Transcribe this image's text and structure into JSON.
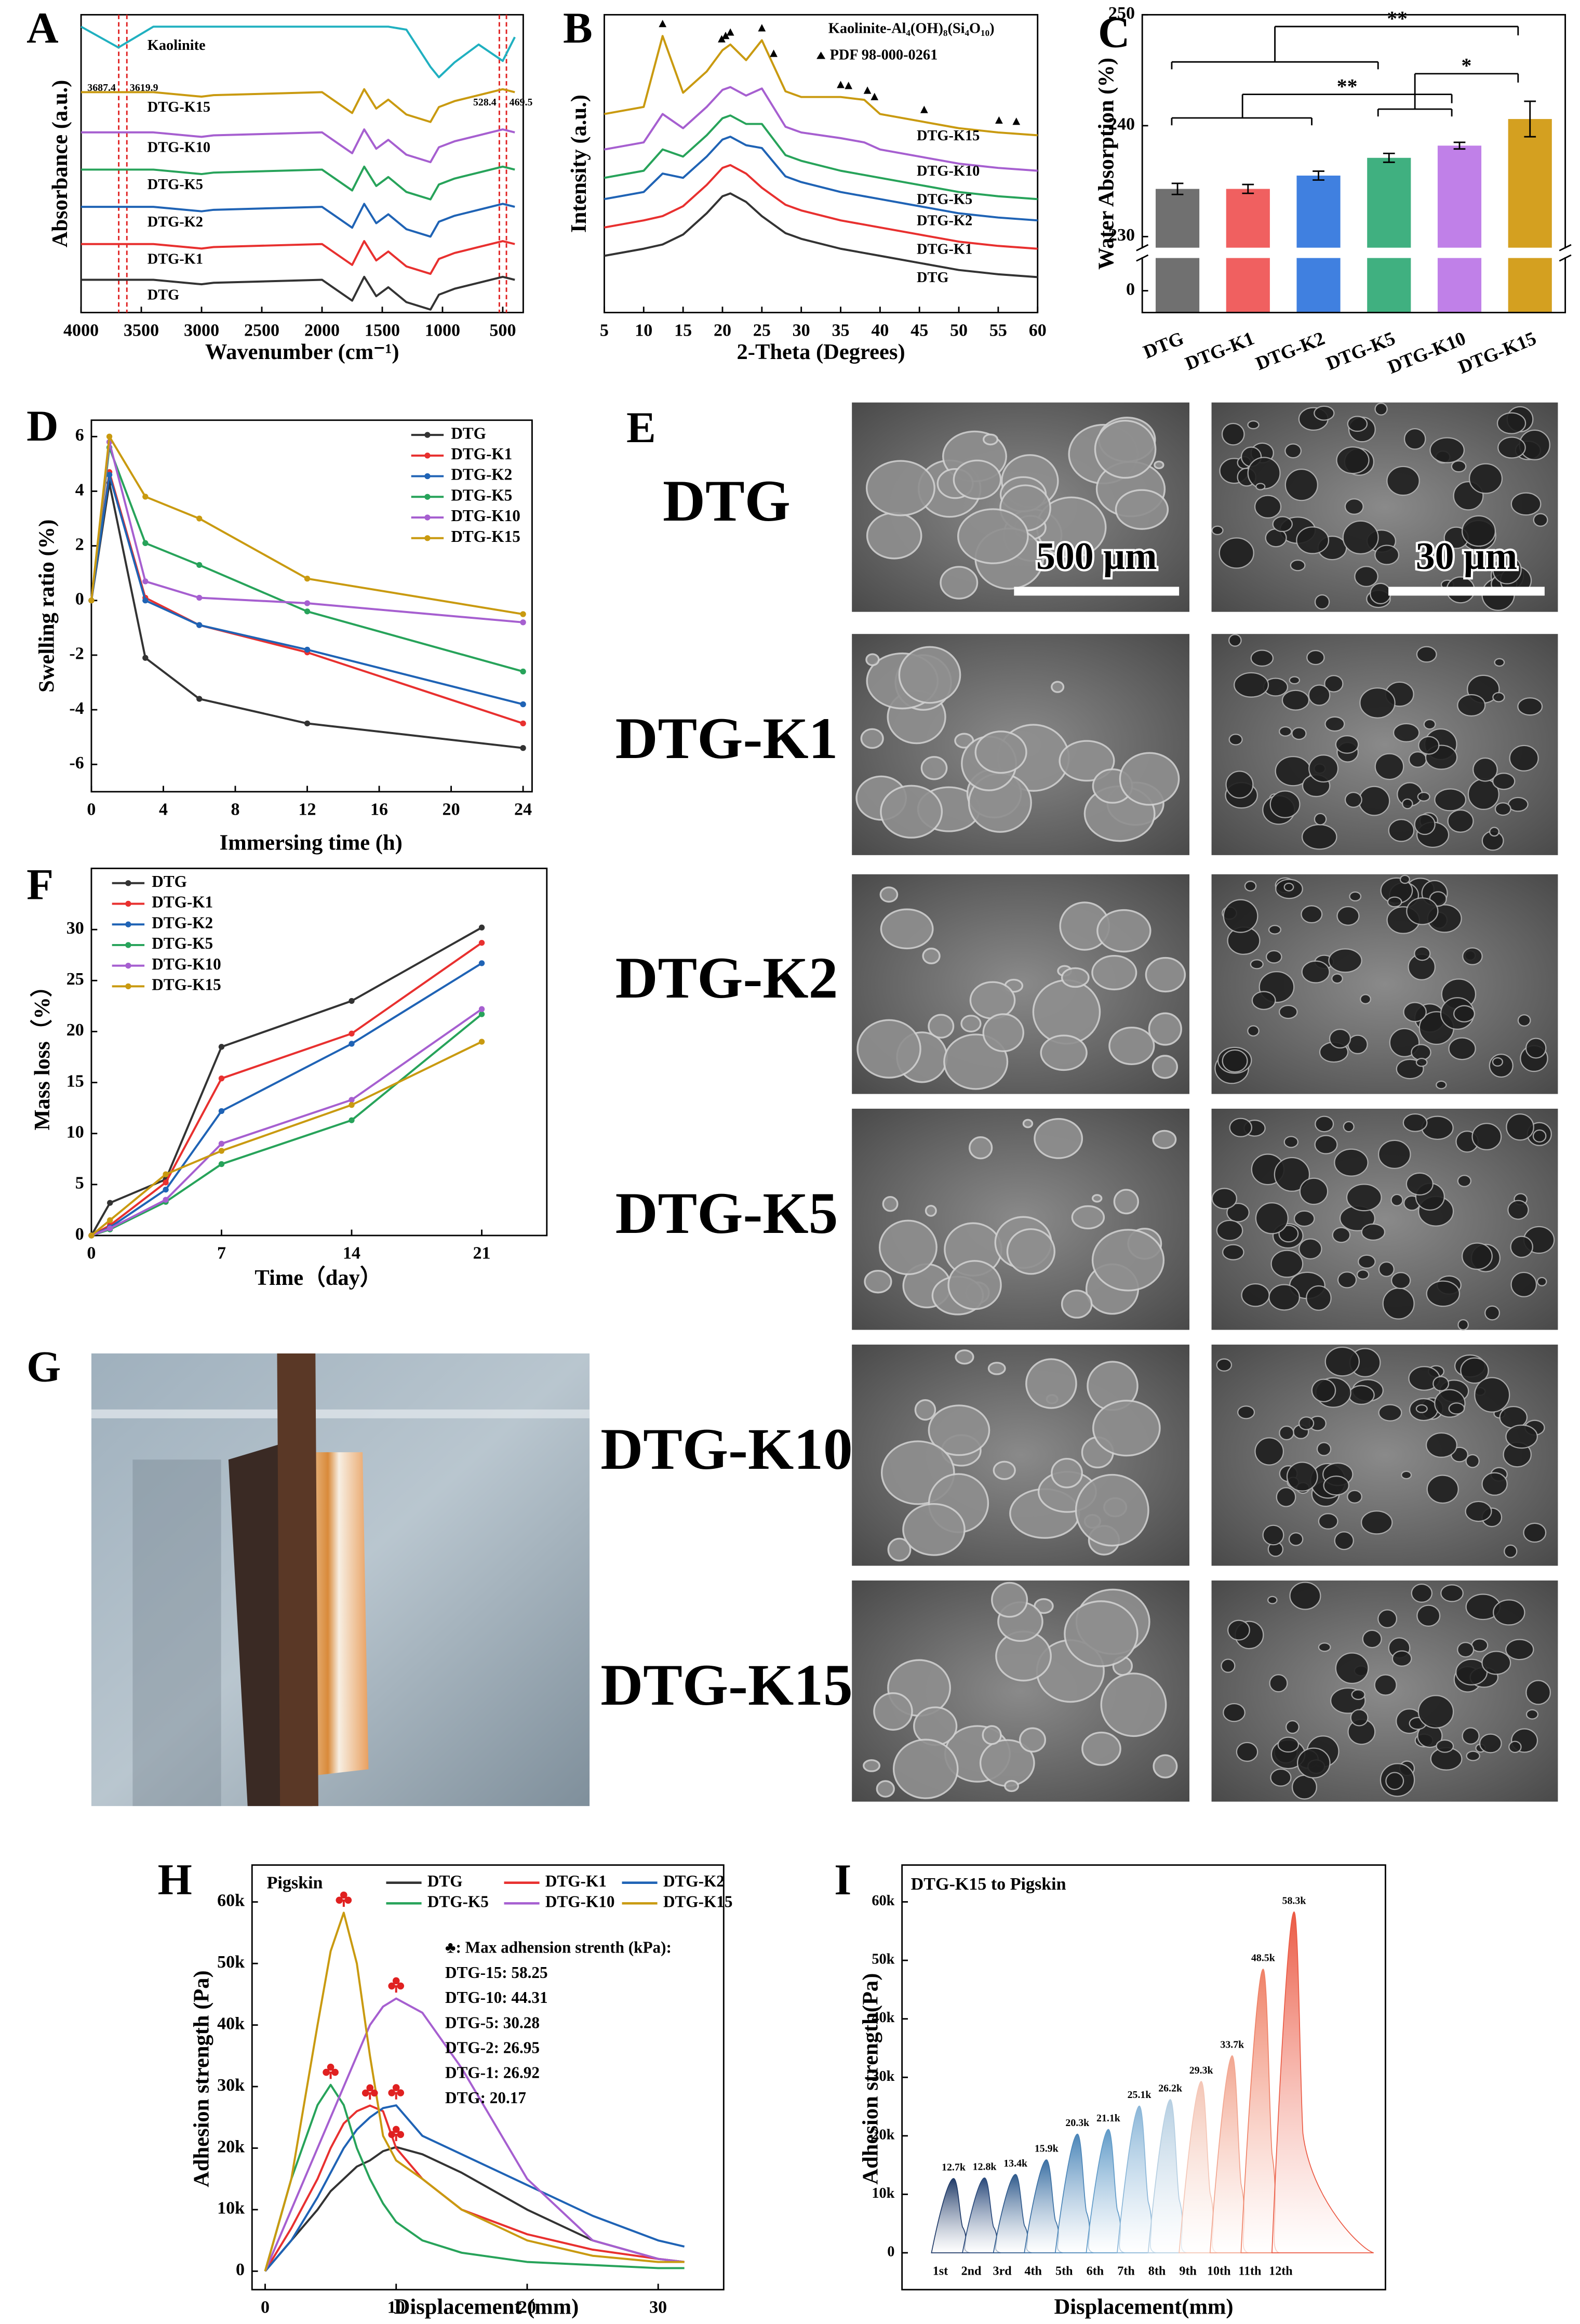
{
  "chart_data": [
    {
      "panel": "A",
      "type": "line",
      "xlabel": "Wavenumber (cm⁻¹)",
      "ylabel": "Absorbance (a.u.)",
      "legend": "inline",
      "x": [
        4000,
        3690,
        3400,
        3000,
        2900,
        2000,
        1750,
        1650,
        1550,
        1450,
        1300,
        1100,
        1030,
        900,
        700,
        500,
        400
      ],
      "xlim": [
        4000,
        330
      ],
      "xticks": [
        4000,
        3500,
        3000,
        2500,
        2000,
        1500,
        1000,
        500
      ],
      "ylim": [
        0,
        20
      ],
      "vlines": [
        3687.4,
        3619.9,
        528.4,
        469.5
      ],
      "vline_color": "#e02020",
      "series": [
        {
          "name": "DTG",
          "color": "#333333",
          "values": [
            2.2,
            2.2,
            2.2,
            1.9,
            2.0,
            2.2,
            0.8,
            2.4,
            1.1,
            1.7,
            0.7,
            0.2,
            1.2,
            1.6,
            2.0,
            2.4,
            2.2
          ]
        },
        {
          "name": "DTG-K1",
          "color": "#e8302f",
          "values": [
            4.6,
            4.6,
            4.6,
            4.3,
            4.4,
            4.6,
            3.2,
            4.8,
            3.5,
            4.1,
            3.1,
            2.6,
            3.6,
            4.0,
            4.4,
            4.8,
            4.6
          ]
        },
        {
          "name": "DTG-K2",
          "color": "#1f63b5",
          "values": [
            7.1,
            7.1,
            7.1,
            6.8,
            6.9,
            7.1,
            5.7,
            7.3,
            6.0,
            6.6,
            5.6,
            5.1,
            6.1,
            6.5,
            6.9,
            7.3,
            7.1
          ]
        },
        {
          "name": "DTG-K5",
          "color": "#27a35a",
          "values": [
            9.6,
            9.6,
            9.6,
            9.3,
            9.4,
            9.6,
            8.2,
            9.8,
            8.5,
            9.1,
            8.1,
            7.6,
            8.6,
            9.0,
            9.4,
            9.8,
            9.6
          ]
        },
        {
          "name": "DTG-K10",
          "color": "#a65fd0",
          "values": [
            12.1,
            12.1,
            12.1,
            11.8,
            11.9,
            12.1,
            10.7,
            12.3,
            11.0,
            11.6,
            10.6,
            10.1,
            11.1,
            11.5,
            11.9,
            12.3,
            12.1
          ]
        },
        {
          "name": "DTG-K15",
          "color": "#c99a10",
          "values": [
            14.8,
            14.8,
            14.8,
            14.5,
            14.6,
            14.8,
            13.4,
            15.0,
            13.7,
            14.3,
            13.3,
            12.8,
            13.8,
            14.2,
            14.6,
            15.0,
            14.8
          ]
        },
        {
          "name": "Kaolinite",
          "color": "#20b0c0",
          "values": [
            19.2,
            17.8,
            19.2,
            19.2,
            19.2,
            19.2,
            19.2,
            19.2,
            19.2,
            19.2,
            19.0,
            16.5,
            15.8,
            16.8,
            18.0,
            16.9,
            18.5
          ]
        }
      ]
    },
    {
      "panel": "B",
      "type": "line",
      "xlabel": "2-Theta (Degrees)",
      "ylabel": "Intensity (a.u.)",
      "legend": "inline",
      "legend_title": "Kaolinite-Al₄(OH)₈(Si₄O₁₀)",
      "peak_label": "PDF 98-000-0261",
      "x": [
        5,
        10,
        12.4,
        15,
        18,
        20,
        21,
        23,
        25,
        28,
        30,
        35,
        38,
        40,
        45,
        50,
        55,
        60
      ],
      "xlim": [
        5,
        60
      ],
      "xticks": [
        5,
        10,
        15,
        20,
        25,
        30,
        35,
        40,
        45,
        50,
        55,
        60
      ],
      "ylim": [
        0,
        21
      ],
      "peaks": [
        12.4,
        19.9,
        20.4,
        21.0,
        25.0,
        26.5,
        35.0,
        36.0,
        38.4,
        39.3,
        45.6,
        55.1,
        57.3
      ],
      "series": [
        {
          "name": "DTG",
          "color": "#333333",
          "values": [
            4.0,
            4.5,
            4.8,
            5.5,
            7.0,
            8.2,
            8.4,
            7.8,
            6.8,
            5.6,
            5.2,
            4.5,
            4.2,
            4.0,
            3.5,
            3.0,
            2.7,
            2.5
          ]
        },
        {
          "name": "DTG-K1",
          "color": "#e8302f",
          "values": [
            6.0,
            6.5,
            6.8,
            7.5,
            9.0,
            10.2,
            10.4,
            9.8,
            8.8,
            7.6,
            7.2,
            6.5,
            6.2,
            6.0,
            5.5,
            5.0,
            4.7,
            4.5
          ]
        },
        {
          "name": "DTG-K2",
          "color": "#1f63b5",
          "values": [
            8.0,
            8.5,
            9.8,
            9.5,
            11.0,
            12.2,
            12.4,
            11.8,
            11.6,
            9.6,
            9.2,
            8.5,
            8.2,
            8.0,
            7.5,
            7.0,
            6.7,
            6.5
          ]
        },
        {
          "name": "DTG-K5",
          "color": "#27a35a",
          "values": [
            9.5,
            10.0,
            11.5,
            11.0,
            12.5,
            13.7,
            13.9,
            13.3,
            13.3,
            11.1,
            10.7,
            10.0,
            9.7,
            9.5,
            9.0,
            8.5,
            8.2,
            8.0
          ]
        },
        {
          "name": "DTG-K10",
          "color": "#a65fd0",
          "values": [
            11.5,
            12.0,
            14.0,
            13.0,
            14.5,
            15.7,
            15.9,
            15.3,
            15.8,
            13.1,
            12.7,
            12.3,
            12.0,
            11.5,
            11.0,
            10.5,
            10.2,
            10.0
          ]
        },
        {
          "name": "DTG-K15",
          "color": "#c99a10",
          "values": [
            14.0,
            14.5,
            19.5,
            15.5,
            17.0,
            18.5,
            18.9,
            17.8,
            19.2,
            15.6,
            15.2,
            15.2,
            15.0,
            14.0,
            13.5,
            13.0,
            12.7,
            12.5
          ]
        }
      ]
    },
    {
      "panel": "C",
      "type": "bar",
      "ylabel": "Water Absorption (%)",
      "categories": [
        "DTG",
        "DTG-K1",
        "DTG-K2",
        "DTG-K5",
        "DTG-K10",
        "DTG-K15"
      ],
      "values": [
        234.3,
        234.3,
        235.5,
        237.1,
        238.2,
        240.6
      ],
      "errors": [
        0.5,
        0.4,
        0.4,
        0.4,
        0.3,
        1.6
      ],
      "colors": [
        "#707070",
        "#f06060",
        "#4080e0",
        "#40b080",
        "#c080e8",
        "#d4a020"
      ],
      "ylim": [
        -2,
        250
      ],
      "ybreak": [
        3,
        229
      ],
      "yticks": [
        0,
        230,
        240,
        250
      ],
      "annotations": [
        "**",
        "**",
        "*"
      ]
    },
    {
      "panel": "D",
      "type": "line",
      "xlabel": "Immersing time (h)",
      "ylabel": "Swelling ratio (%)",
      "legend": "upper right",
      "markers": true,
      "x": [
        0,
        1,
        3,
        6,
        12,
        24
      ],
      "xlim": [
        0,
        24.5
      ],
      "xticks": [
        0,
        4,
        8,
        12,
        16,
        20,
        24
      ],
      "ylim": [
        -7,
        6.6
      ],
      "yticks": [
        -6,
        -4,
        -2,
        0,
        2,
        4,
        6
      ],
      "series": [
        {
          "name": "DTG",
          "color": "#333333",
          "values": [
            0,
            4.3,
            -2.1,
            -3.6,
            -4.5,
            -5.4
          ]
        },
        {
          "name": "DTG-K1",
          "color": "#e8302f",
          "values": [
            0,
            4.7,
            0.1,
            -0.9,
            -1.9,
            -4.5
          ]
        },
        {
          "name": "DTG-K2",
          "color": "#1f63b5",
          "values": [
            0,
            4.6,
            0,
            -0.9,
            -1.8,
            -3.8
          ]
        },
        {
          "name": "DTG-K5",
          "color": "#27a35a",
          "values": [
            0,
            5.6,
            2.1,
            1.3,
            -0.4,
            -2.6
          ]
        },
        {
          "name": "DTG-K10",
          "color": "#a65fd0",
          "values": [
            0,
            5.8,
            0.7,
            0.1,
            -0.1,
            -0.8
          ]
        },
        {
          "name": "DTG-K15",
          "color": "#c99a10",
          "values": [
            0,
            6.0,
            3.8,
            3.0,
            0.8,
            -0.5
          ]
        }
      ]
    },
    {
      "panel": "F",
      "type": "line",
      "xlabel": "Time（day）",
      "ylabel": "Mass loss（%）",
      "legend": "upper left",
      "markers": true,
      "x": [
        0,
        1,
        4,
        7,
        14,
        21
      ],
      "xlim": [
        0,
        24.5
      ],
      "xticks": [
        0,
        7,
        14,
        21
      ],
      "ylim": [
        0,
        36
      ],
      "yticks": [
        0,
        5,
        10,
        15,
        20,
        25,
        30
      ],
      "series": [
        {
          "name": "DTG",
          "color": "#333333",
          "values": [
            0,
            3.2,
            5.5,
            18.5,
            23.0,
            30.2
          ]
        },
        {
          "name": "DTG-K1",
          "color": "#e8302f",
          "values": [
            0,
            1.0,
            5.2,
            15.4,
            19.8,
            28.7
          ]
        },
        {
          "name": "DTG-K2",
          "color": "#1f63b5",
          "values": [
            0,
            0.8,
            4.5,
            12.2,
            18.8,
            26.7
          ]
        },
        {
          "name": "DTG-K5",
          "color": "#27a35a",
          "values": [
            0,
            0.6,
            3.3,
            7.0,
            11.3,
            21.7
          ]
        },
        {
          "name": "DTG-K10",
          "color": "#a65fd0",
          "values": [
            0,
            0.7,
            3.5,
            9.0,
            13.3,
            22.2
          ]
        },
        {
          "name": "DTG-K15",
          "color": "#c99a10",
          "values": [
            0,
            1.5,
            6.0,
            8.3,
            12.8,
            19.0
          ]
        }
      ]
    },
    {
      "panel": "H",
      "type": "line",
      "title": "Pigskin",
      "xlabel": "Displacement (mm)",
      "ylabel": "Adhesion strength (Pa)",
      "legend": "top",
      "x": [
        0,
        2,
        4,
        5,
        6,
        7,
        8,
        9,
        10,
        12,
        15,
        20,
        25,
        30,
        32
      ],
      "xlim": [
        -1,
        35
      ],
      "xticks": [
        0,
        10,
        20,
        30
      ],
      "ylim": [
        -3000,
        66000
      ],
      "yticks": [
        0,
        {
          "value": 10000,
          "label": "10k"
        },
        {
          "value": 20000,
          "label": "20k"
        },
        {
          "value": 30000,
          "label": "30k"
        },
        {
          "value": 40000,
          "label": "40k"
        },
        {
          "value": 50000,
          "label": "50k"
        },
        {
          "value": 60000,
          "label": "60k"
        }
      ],
      "annotation_color": "#e02020",
      "annotations": [
        "♣: Max adhension strenth (kPa):",
        "DTG-15: 58.25",
        "DTG-10: 44.31",
        "DTG-5: 30.28",
        "DTG-2: 26.95",
        "DTG-1: 26.92",
        "DTG: 20.17"
      ],
      "series": [
        {
          "name": "DTG",
          "color": "#333333",
          "values": [
            0,
            5000,
            10000,
            13000,
            15000,
            17000,
            18000,
            19500,
            20170,
            19000,
            16000,
            10000,
            5000,
            2000,
            1500
          ]
        },
        {
          "name": "DTG-K1",
          "color": "#e8302f",
          "values": [
            0,
            7000,
            15000,
            20000,
            24000,
            26000,
            26920,
            26000,
            20000,
            15000,
            10000,
            6000,
            3500,
            2000,
            1500
          ]
        },
        {
          "name": "DTG-K2",
          "color": "#1f63b5",
          "values": [
            0,
            5000,
            12000,
            16000,
            20000,
            23000,
            25000,
            26500,
            26950,
            22000,
            19000,
            14000,
            9000,
            5000,
            4000
          ]
        },
        {
          "name": "DTG-K5",
          "color": "#27a35a",
          "values": [
            0,
            15000,
            27000,
            30280,
            27000,
            20000,
            15000,
            11000,
            8000,
            5000,
            3000,
            1500,
            1000,
            500,
            500
          ]
        },
        {
          "name": "DTG-K10",
          "color": "#a65fd0",
          "values": [
            0,
            10000,
            20000,
            25000,
            30000,
            35000,
            40000,
            43000,
            44310,
            42000,
            33000,
            15000,
            5000,
            2000,
            1500
          ]
        },
        {
          "name": "DTG-K15",
          "color": "#c99a10",
          "values": [
            0,
            15000,
            40000,
            52000,
            58250,
            50000,
            35000,
            22000,
            18000,
            15000,
            10000,
            5000,
            2500,
            1500,
            1500
          ]
        }
      ]
    },
    {
      "panel": "I",
      "type": "area",
      "title": "DTG-K15 to Pigskin",
      "xlabel": "Displacement(mm)",
      "ylabel": "Adhesion strength(Pa)",
      "categories": [
        "1st",
        "2nd",
        "3rd",
        "4th",
        "5th",
        "6th",
        "7th",
        "8th",
        "9th",
        "10th",
        "11th",
        "12th"
      ],
      "values": [
        12700,
        12800,
        13400,
        15900,
        20300,
        21100,
        25100,
        26200,
        29300,
        33700,
        48500,
        58300
      ],
      "value_labels": [
        "12.7k",
        "12.8k",
        "13.4k",
        "15.9k",
        "20.3k",
        "21.1k",
        "25.1k",
        "26.2k",
        "29.3k",
        "33.7k",
        "48.5k",
        "58.3k"
      ],
      "colors": [
        "#1f3a68",
        "#28487a",
        "#2f5a8c",
        "#3a6fa3",
        "#4a85b8",
        "#5f9ac8",
        "#8ab6d8",
        "#b6cfe2",
        "#f4c6b6",
        "#f2a58f",
        "#ef8166",
        "#eb5a44"
      ],
      "ylim": [
        -6300,
        66300
      ],
      "yticks": [
        0,
        {
          "value": 10000,
          "label": "10k"
        },
        {
          "value": 20000,
          "label": "20k"
        },
        {
          "value": 30000,
          "label": "30k"
        },
        {
          "value": 40000,
          "label": "40k"
        },
        {
          "value": 50000,
          "label": "50k"
        },
        {
          "value": 60000,
          "label": "60k"
        }
      ]
    }
  ],
  "sem": {
    "panel": "E",
    "samples": [
      "DTG",
      "DTG-K1",
      "DTG-K2",
      "DTG-K5",
      "DTG-K10",
      "DTG-K15"
    ],
    "scale_bars": [
      "500 μm",
      "30 μm"
    ]
  },
  "photo": {
    "panel": "G"
  }
}
